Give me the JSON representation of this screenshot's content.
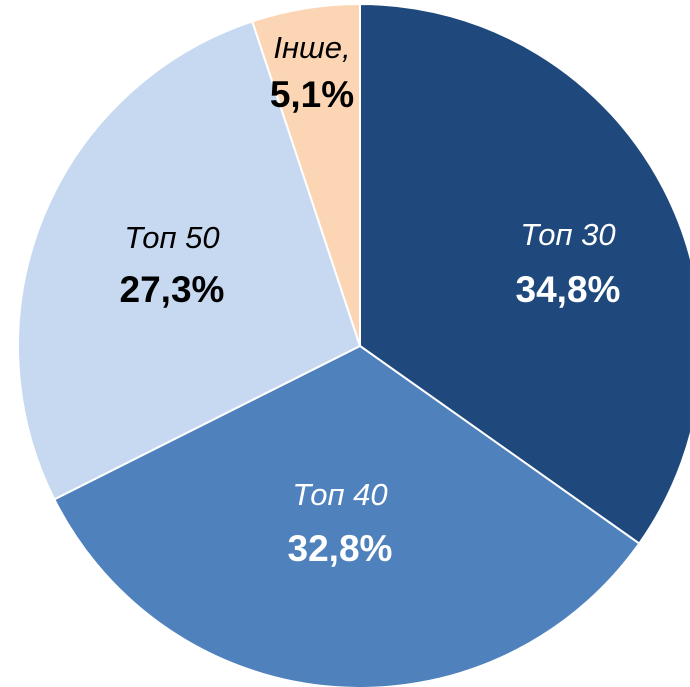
{
  "chart_data": {
    "type": "pie",
    "categories": [
      "Топ 30",
      "Топ 40",
      "Топ 50",
      "Інше,"
    ],
    "values": [
      34.8,
      32.8,
      27.3,
      5.1
    ],
    "value_labels": [
      "34,8%",
      "32,8%",
      "27,3%",
      "5,1%"
    ],
    "colors": [
      "#1f497d",
      "#4f81bd",
      "#c6d9f1",
      "#fcd5b5"
    ],
    "label_colors": [
      "#ffffff",
      "#ffffff",
      "#000000",
      "#000000"
    ]
  }
}
